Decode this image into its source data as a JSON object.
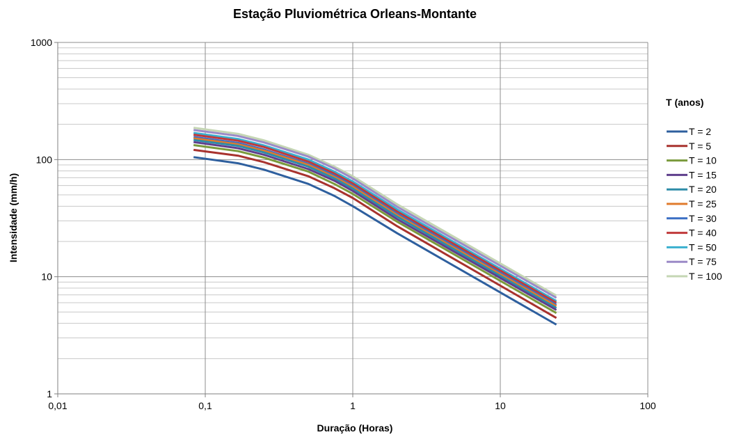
{
  "chart_data": {
    "type": "line",
    "title": "Estação Pluviométrica Orleans-Montante",
    "xlabel": "Duração (Horas)",
    "ylabel": "Intensidade (mm/h)",
    "x_scale": "log",
    "y_scale": "log",
    "xlim": [
      0.01,
      100
    ],
    "ylim": [
      1,
      1000
    ],
    "x_ticks": [
      0.01,
      0.1,
      1,
      10,
      100
    ],
    "x_tick_labels": [
      "0,01",
      "0,1",
      "1",
      "10",
      "100"
    ],
    "y_ticks": [
      1,
      10,
      100,
      1000
    ],
    "y_tick_labels": [
      "1",
      "10",
      "100",
      "1000"
    ],
    "grid": true,
    "legend_title": "T (anos)",
    "legend_position": "right",
    "x": [
      0.0833,
      0.1667,
      0.25,
      0.5,
      0.75,
      1,
      2,
      24
    ],
    "series": [
      {
        "name": "T = 2",
        "color": "#2e5f9e",
        "values": [
          105,
          93,
          82,
          62,
          49,
          40,
          23.5,
          3.9
        ]
      },
      {
        "name": "T = 5",
        "color": "#a8322e",
        "values": [
          121,
          108,
          95,
          72,
          57,
          47,
          27,
          4.45
        ]
      },
      {
        "name": "T = 10",
        "color": "#7a9a3c",
        "values": [
          133,
          118,
          104,
          79,
          62,
          51,
          29.5,
          4.9
        ]
      },
      {
        "name": "T = 15",
        "color": "#5f3f8c",
        "values": [
          141,
          125,
          110,
          83,
          66,
          54,
          31,
          5.2
        ]
      },
      {
        "name": "T = 20",
        "color": "#2d8ca8",
        "values": [
          147,
          131,
          115,
          87,
          69,
          56.5,
          32.5,
          5.4
        ]
      },
      {
        "name": "T = 25",
        "color": "#e07b2c",
        "values": [
          152,
          135,
          119,
          90,
          71,
          58.5,
          33.5,
          5.6
        ]
      },
      {
        "name": "T = 30",
        "color": "#3b6fc4",
        "values": [
          156,
          139,
          122,
          92,
          73,
          60,
          34.5,
          5.75
        ]
      },
      {
        "name": "T = 40",
        "color": "#c0393a",
        "values": [
          163,
          145,
          128,
          96,
          76,
          62.5,
          36,
          6.0
        ]
      },
      {
        "name": "T = 50",
        "color": "#39b0cf",
        "values": [
          169,
          150,
          132,
          100,
          79,
          65,
          37.5,
          6.2
        ]
      },
      {
        "name": "T = 75",
        "color": "#9b8ac7",
        "values": [
          179,
          159,
          140,
          106,
          84,
          69,
          39.5,
          6.6
        ]
      },
      {
        "name": "T = 100",
        "color": "#c5d6b4",
        "values": [
          187,
          166,
          146,
          110,
          87,
          72,
          41.5,
          6.9
        ]
      }
    ]
  }
}
